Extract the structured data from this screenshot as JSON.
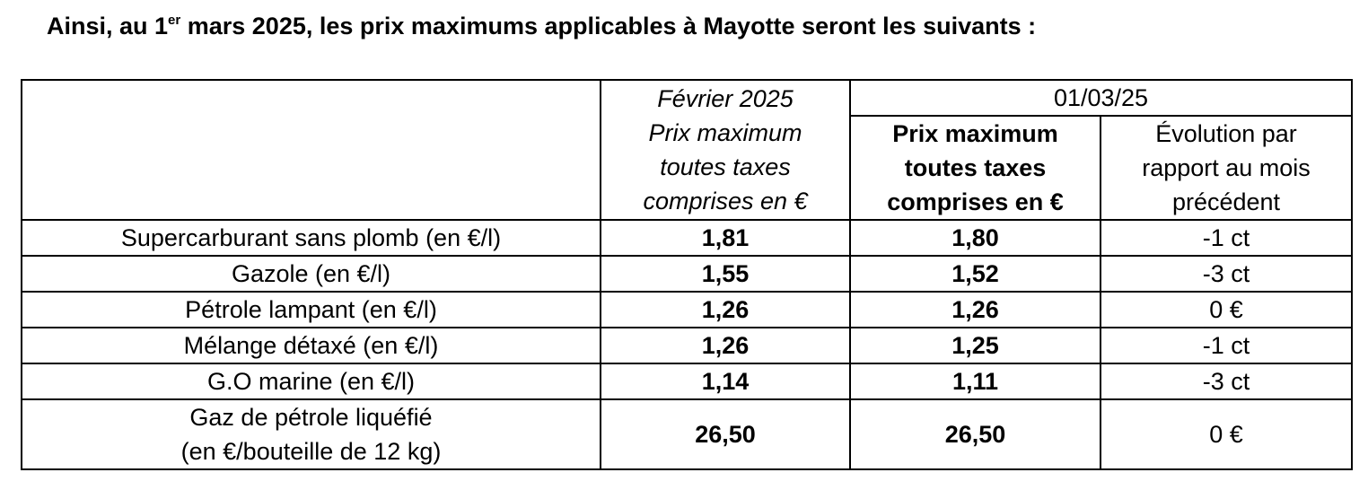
{
  "heading": {
    "prefix": "Ainsi, au 1",
    "sup": "er",
    "suffix": " mars 2025, les prix maximums applicables à Mayotte seront les suivants :"
  },
  "table": {
    "col_feb": {
      "line1": "Février 2025",
      "line2": "Prix maximum",
      "line3": "toutes taxes",
      "line4": "comprises en €"
    },
    "col_group": "01/03/25",
    "col_mar": {
      "line1": "Prix maximum",
      "line2": "toutes taxes",
      "line3": "comprises en €"
    },
    "col_evo": {
      "line1": "Évolution par",
      "line2": "rapport au mois",
      "line3": "précédent"
    },
    "rows": [
      {
        "label": "Supercarburant sans plomb (en €/l)",
        "label2": "",
        "feb": "1,81",
        "mar": "1,80",
        "evo": "-1 ct"
      },
      {
        "label": "Gazole (en €/l)",
        "label2": "",
        "feb": "1,55",
        "mar": "1,52",
        "evo": "-3 ct"
      },
      {
        "label": "Pétrole lampant (en €/l)",
        "label2": "",
        "feb": "1,26",
        "mar": "1,26",
        "evo": "0 €"
      },
      {
        "label": "Mélange détaxé (en €/l)",
        "label2": "",
        "feb": "1,26",
        "mar": "1,25",
        "evo": "-1 ct"
      },
      {
        "label": "G.O marine (en €/l)",
        "label2": "",
        "feb": "1,14",
        "mar": "1,11",
        "evo": "-3 ct"
      },
      {
        "label": "Gaz de pétrole liquéfié",
        "label2": "(en €/bouteille de 12 kg)",
        "feb": "26,50",
        "mar": "26,50",
        "evo": "0 €"
      }
    ]
  }
}
